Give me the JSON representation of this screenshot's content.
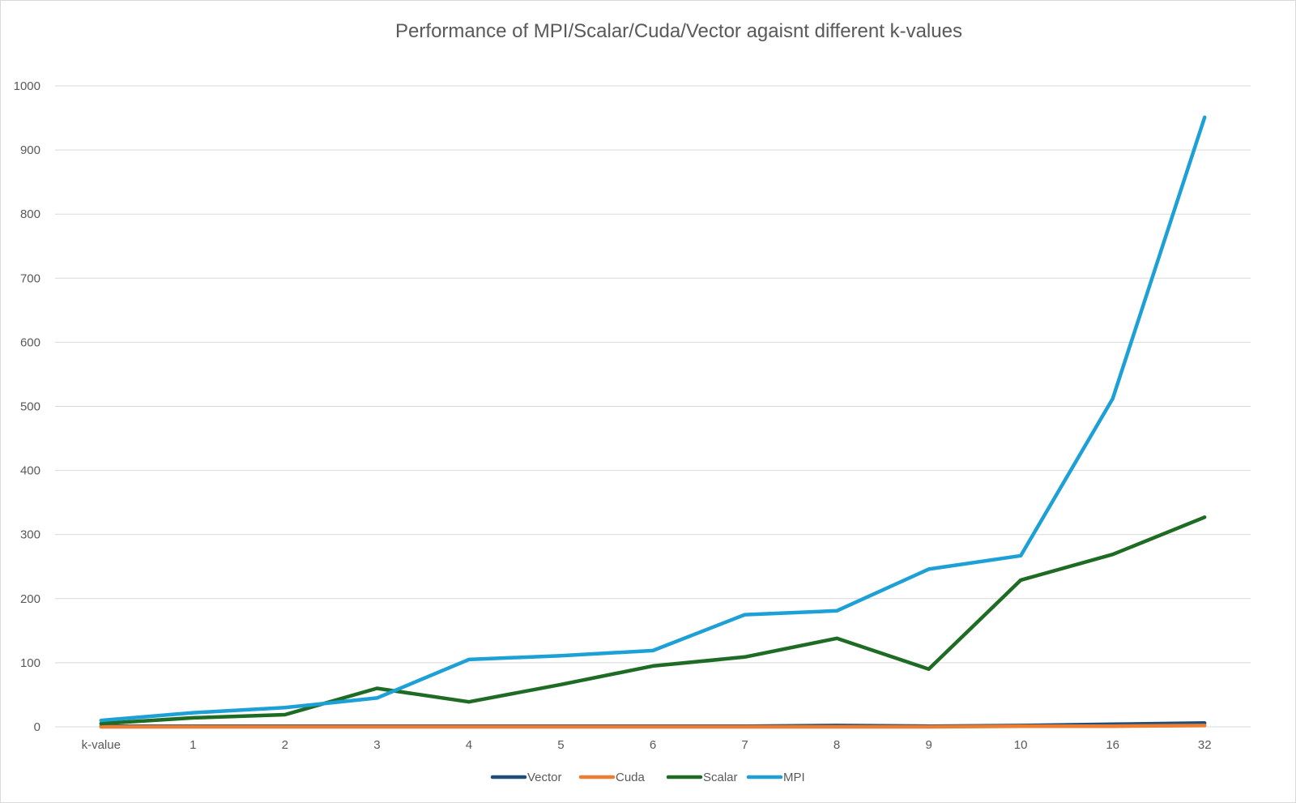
{
  "chart_data": {
    "type": "line",
    "title": "Performance of MPI/Scalar/Cuda/Vector agaisnt different k-values",
    "xlabel": "",
    "ylabel": "",
    "categories": [
      "k-value",
      "1",
      "2",
      "3",
      "4",
      "5",
      "6",
      "7",
      "8",
      "9",
      "10",
      "16",
      "32"
    ],
    "ylim": [
      0,
      1000
    ],
    "yticks": [
      0,
      100,
      200,
      300,
      400,
      500,
      600,
      700,
      800,
      900,
      1000
    ],
    "grid": true,
    "legend_position": "bottom",
    "series": [
      {
        "name": "Vector",
        "color": "#1f4e79",
        "values": [
          1,
          1,
          1,
          1,
          1,
          1,
          1,
          1,
          2,
          1,
          2,
          4,
          6
        ]
      },
      {
        "name": "Cuda",
        "color": "#ed7d31",
        "values": [
          0,
          0,
          0,
          0,
          0,
          0,
          0,
          0,
          0,
          0,
          1,
          1,
          2
        ]
      },
      {
        "name": "Scalar",
        "color": "#1e6b24",
        "values": [
          5,
          14,
          19,
          60,
          39,
          66,
          95,
          109,
          138,
          90,
          229,
          269,
          327
        ]
      },
      {
        "name": "MPI",
        "color": "#1ca0d6",
        "values": [
          10,
          22,
          30,
          45,
          105,
          111,
          119,
          175,
          181,
          246,
          267,
          512,
          951
        ]
      }
    ]
  }
}
